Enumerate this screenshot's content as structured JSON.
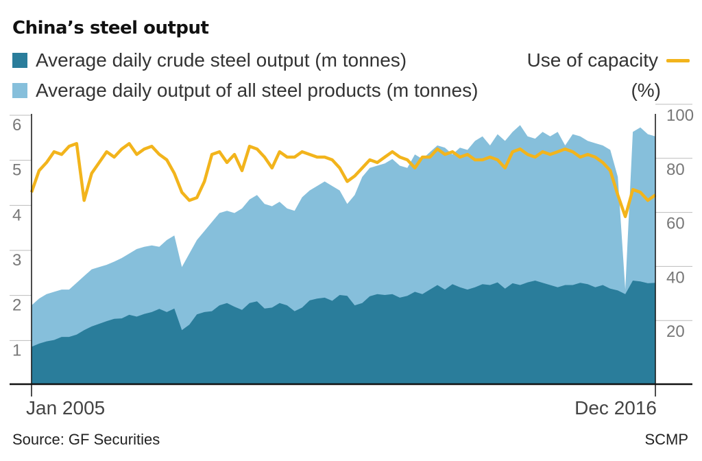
{
  "title": "China’s steel output",
  "legend": {
    "crude_label": "Average daily crude steel output (m tonnes)",
    "products_label": "Average daily output of all steel products (m tonnes)",
    "capacity_label": "Use of capacity",
    "capacity_unit": "(%)"
  },
  "colors": {
    "crude": "#2A7D9B",
    "products": "#86BFDB",
    "capacity": "#F2B41C",
    "axis": "#111111",
    "grid": "#bbbbbb"
  },
  "source": "Source: GF Securities",
  "credit": "SCMP",
  "chart_data": {
    "type": "area",
    "x_start_label": "Jan 2005",
    "x_end_label": "Dec 2016",
    "x_start": "2005-01",
    "x_end": "2016-12",
    "left_axis": {
      "ticks": [
        "1",
        "2",
        "3",
        "4",
        "5",
        "6"
      ],
      "range": [
        0,
        6
      ]
    },
    "right_axis": {
      "ticks": [
        "20",
        "40",
        "60",
        "80",
        "100"
      ],
      "range": [
        0,
        100
      ]
    },
    "series": [
      {
        "name": "Average daily crude steel output (m tonnes)",
        "axis": "left",
        "values": [
          0.83,
          0.9,
          0.95,
          0.98,
          1.05,
          1.05,
          1.1,
          1.2,
          1.28,
          1.34,
          1.4,
          1.45,
          1.46,
          1.54,
          1.5,
          1.56,
          1.6,
          1.67,
          1.6,
          1.68,
          1.2,
          1.32,
          1.55,
          1.6,
          1.62,
          1.75,
          1.8,
          1.72,
          1.65,
          1.8,
          1.84,
          1.68,
          1.7,
          1.8,
          1.75,
          1.62,
          1.7,
          1.86,
          1.9,
          1.92,
          1.85,
          1.98,
          1.96,
          1.75,
          1.8,
          1.95,
          2.0,
          1.98,
          2.0,
          1.92,
          1.96,
          2.05,
          2.0,
          2.1,
          2.2,
          2.1,
          2.22,
          2.15,
          2.1,
          2.15,
          2.22,
          2.2,
          2.26,
          2.12,
          2.24,
          2.2,
          2.26,
          2.3,
          2.25,
          2.2,
          2.15,
          2.2,
          2.2,
          2.25,
          2.22,
          2.15,
          2.2,
          2.12,
          2.08,
          2.0,
          2.3,
          2.28,
          2.24,
          2.25
        ]
      },
      {
        "name": "Average daily output of all steel products (m tonnes)",
        "axis": "left",
        "values": [
          1.75,
          1.9,
          2.0,
          2.05,
          2.1,
          2.1,
          2.25,
          2.4,
          2.55,
          2.6,
          2.65,
          2.72,
          2.8,
          2.9,
          3.0,
          3.05,
          3.08,
          3.05,
          3.2,
          3.3,
          2.6,
          2.9,
          3.2,
          3.4,
          3.6,
          3.8,
          3.85,
          3.8,
          3.9,
          4.1,
          4.2,
          4.0,
          3.95,
          4.05,
          3.9,
          3.85,
          4.15,
          4.3,
          4.4,
          4.5,
          4.4,
          4.3,
          4.0,
          4.2,
          4.6,
          4.8,
          4.85,
          4.9,
          5.0,
          4.85,
          4.8,
          5.1,
          5.0,
          5.15,
          5.3,
          5.25,
          5.1,
          5.25,
          5.2,
          5.4,
          5.5,
          5.3,
          5.55,
          5.4,
          5.6,
          5.75,
          5.5,
          5.45,
          5.6,
          5.5,
          5.6,
          5.3,
          5.55,
          5.5,
          5.4,
          5.35,
          5.3,
          5.2,
          4.6,
          2.1,
          5.6,
          5.7,
          5.55,
          5.5
        ]
      },
      {
        "name": "Use of capacity",
        "axis": "right",
        "values": [
          71,
          79,
          82,
          86,
          85,
          88,
          89,
          68,
          78,
          82,
          86,
          84,
          87,
          89,
          85,
          87,
          88,
          85,
          83,
          78,
          71,
          68,
          69,
          75,
          85,
          86,
          82,
          85,
          79,
          88,
          87,
          84,
          80,
          86,
          84,
          84,
          86,
          85,
          84,
          84,
          83,
          80,
          75,
          77,
          80,
          83,
          82,
          84,
          86,
          84,
          83,
          80,
          84,
          84,
          87,
          85,
          86,
          84,
          85,
          83,
          83,
          84,
          83,
          80,
          86,
          87,
          85,
          84,
          86,
          85,
          86,
          87,
          86,
          84,
          85,
          84,
          82,
          79,
          70,
          62,
          72,
          71,
          68,
          70
        ]
      }
    ]
  }
}
